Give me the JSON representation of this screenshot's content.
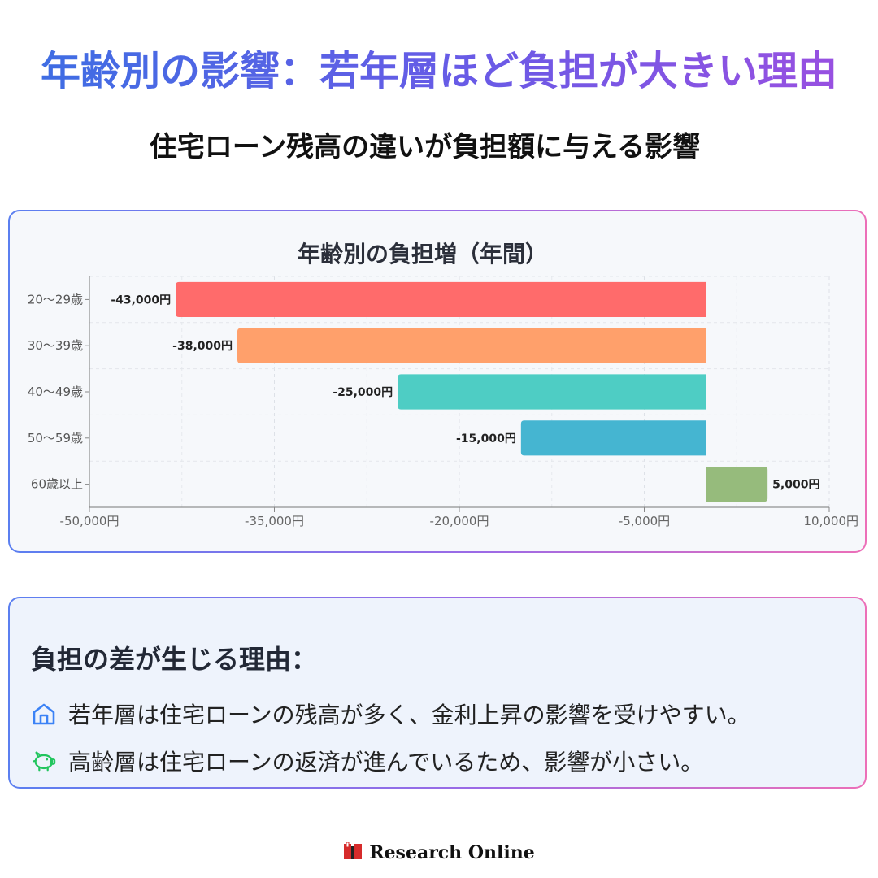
{
  "header": {
    "title": "年齢別の影響：若年層ほど負担が大きい理由",
    "subtitle": "住宅ローン残高の違いが負担額に与える影響"
  },
  "chart_data": {
    "type": "bar",
    "orientation": "horizontal",
    "title": "年齢別の負担増（年間）",
    "categories": [
      "20〜29歳",
      "30〜39歳",
      "40〜49歳",
      "50〜59歳",
      "60歳以上"
    ],
    "values": [
      -43000,
      -38000,
      -25000,
      -15000,
      5000
    ],
    "value_labels": [
      "-43,000円",
      "-38,000円",
      "-25,000円",
      "-15,000円",
      "5,000円"
    ],
    "colors": [
      "#ff6b6b",
      "#ffa06b",
      "#4ecdc4",
      "#45b5d1",
      "#96bb7c"
    ],
    "xlim": [
      -50000,
      10000
    ],
    "x_ticks": [
      -50000,
      -35000,
      -20000,
      -5000,
      10000
    ],
    "x_tick_labels": [
      "-50,000円",
      "-35,000円",
      "-20,000円",
      "-5,000円",
      "10,000円"
    ],
    "grid": true,
    "legend": false
  },
  "reasons": {
    "title": "負担の差が生じる理由：",
    "items": [
      {
        "icon": "house-icon",
        "color": "#3b82f6",
        "text": "若年層は住宅ローンの残高が多く、金利上昇の影響を受けやすい。"
      },
      {
        "icon": "piggy-bank-icon",
        "color": "#22c55e",
        "text": "高齢層は住宅ローンの返済が進んでいるため、影響が小さい。"
      }
    ]
  },
  "footer": {
    "logo_icon": "book-icon",
    "brand": "Research Online"
  }
}
